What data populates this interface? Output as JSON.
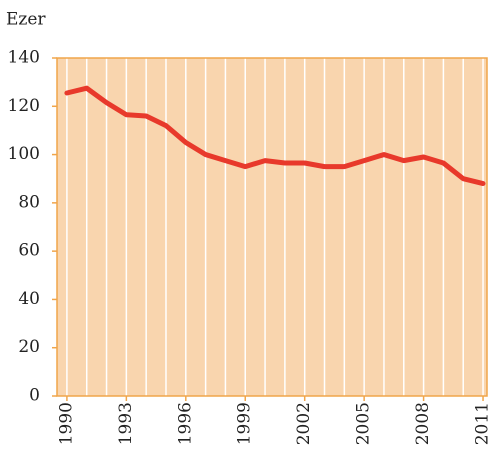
{
  "chart_data": {
    "type": "line",
    "y_label": "Ezer",
    "x": [
      1990,
      1991,
      1992,
      1993,
      1994,
      1995,
      1996,
      1997,
      1998,
      1999,
      2000,
      2001,
      2002,
      2003,
      2004,
      2005,
      2006,
      2007,
      2008,
      2009,
      2010,
      2011
    ],
    "series": [
      {
        "name": "Ezer",
        "color": "#e8392b",
        "values": [
          125.5,
          127.5,
          121.5,
          116.5,
          116,
          112,
          105,
          100,
          97.5,
          95,
          97.5,
          96.5,
          96.5,
          95,
          95,
          97.5,
          100,
          97.5,
          99,
          96.5,
          90,
          88
        ]
      }
    ],
    "xlim": [
      1989.5,
      2011.2
    ],
    "xticks": [
      1990,
      1993,
      1996,
      1999,
      2002,
      2005,
      2008,
      2011
    ],
    "ylim": [
      0,
      140
    ],
    "yticks": [
      0,
      20,
      40,
      60,
      80,
      100,
      120,
      140
    ],
    "grid": true,
    "background": "#f9d5ae",
    "frame_color": "#f0a54a"
  }
}
